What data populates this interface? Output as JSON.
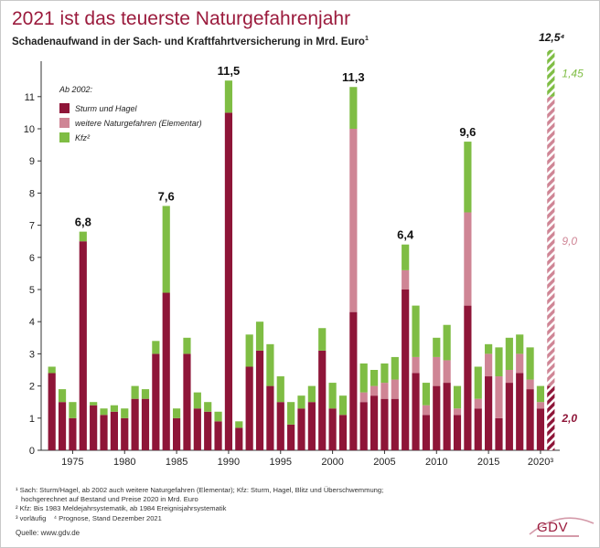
{
  "header": {
    "title": "2021 ist das teuerste Naturgefahrenjahr",
    "subtitle": "Schadenaufwand in der Sach- und Kraftfahrtversicherung in Mrd. Euro",
    "subtitle_sup": "1"
  },
  "colors": {
    "sturm": "#8e1538",
    "elementar": "#cf8595",
    "kfz": "#7fbd44",
    "title": "#9b1b3d"
  },
  "chart_data": {
    "type": "bar",
    "stacked": true,
    "years": [
      1973,
      1974,
      1975,
      1976,
      1977,
      1978,
      1979,
      1980,
      1981,
      1982,
      1983,
      1984,
      1985,
      1986,
      1987,
      1988,
      1989,
      1990,
      1991,
      1992,
      1993,
      1994,
      1995,
      1996,
      1997,
      1998,
      1999,
      2000,
      2001,
      2002,
      2003,
      2004,
      2005,
      2006,
      2007,
      2008,
      2009,
      2010,
      2011,
      2012,
      2013,
      2014,
      2015,
      2016,
      2017,
      2018,
      2019,
      2020,
      2021
    ],
    "series": [
      {
        "name": "Sturm und Hagel",
        "values": [
          2.4,
          1.5,
          1.0,
          6.5,
          1.4,
          1.1,
          1.2,
          1.0,
          1.6,
          1.6,
          3.0,
          4.9,
          1.0,
          3.0,
          1.3,
          1.2,
          0.9,
          10.5,
          0.7,
          2.6,
          3.1,
          2.0,
          1.5,
          0.8,
          1.3,
          1.5,
          3.1,
          1.3,
          1.1,
          4.3,
          1.5,
          1.7,
          1.6,
          1.6,
          5.0,
          2.4,
          1.1,
          2.0,
          2.1,
          1.1,
          4.5,
          1.3,
          2.3,
          1.0,
          2.1,
          2.4,
          1.9,
          1.3,
          2.0
        ]
      },
      {
        "name": "weitere Naturgefahren (Elementar)",
        "values": [
          0,
          0,
          0,
          0,
          0,
          0,
          0,
          0,
          0,
          0,
          0,
          0,
          0,
          0,
          0,
          0,
          0,
          0,
          0,
          0,
          0,
          0,
          0,
          0,
          0,
          0,
          0,
          0,
          0,
          5.7,
          0.3,
          0.3,
          0.5,
          0.6,
          0.6,
          0.5,
          0.3,
          0.9,
          0.7,
          0.2,
          2.9,
          0.3,
          0.7,
          1.3,
          0.4,
          0.6,
          0.3,
          0.2,
          9.0
        ]
      },
      {
        "name": "Kfz²",
        "values": [
          0.2,
          0.4,
          0.5,
          0.3,
          0.1,
          0.2,
          0.2,
          0.3,
          0.4,
          0.3,
          0.4,
          2.7,
          0.3,
          0.5,
          0.5,
          0.3,
          0.3,
          1.0,
          0.2,
          1.0,
          0.9,
          1.3,
          0.8,
          0.7,
          0.4,
          0.5,
          0.7,
          0.8,
          0.6,
          1.3,
          0.9,
          0.5,
          0.6,
          0.7,
          0.8,
          1.6,
          0.7,
          0.6,
          1.1,
          0.7,
          2.2,
          1.0,
          0.3,
          0.9,
          1.0,
          0.6,
          1.0,
          0.5,
          1.45
        ]
      }
    ],
    "forecast_year": 2021,
    "annotations": [
      {
        "year": 1976,
        "label": "6,8"
      },
      {
        "year": 1984,
        "label": "7,6"
      },
      {
        "year": 1990,
        "label": "11,5"
      },
      {
        "year": 2002,
        "label": "11,3"
      },
      {
        "year": 2007,
        "label": "6,4"
      },
      {
        "year": 2013,
        "label": "9,6"
      }
    ],
    "forecast_labels": {
      "total": "12,5⁴",
      "kfz": "1,45",
      "elementar": "9,0",
      "sturm": "2,0"
    },
    "ylim": [
      0,
      12
    ],
    "yticks": [
      "0",
      "1",
      "2",
      "3",
      "4",
      "5",
      "6",
      "7",
      "8",
      "9",
      "10",
      "11"
    ],
    "xticks": [
      {
        "year": 1975,
        "label": "1975"
      },
      {
        "year": 1980,
        "label": "1980"
      },
      {
        "year": 1985,
        "label": "1985"
      },
      {
        "year": 1990,
        "label": "1990"
      },
      {
        "year": 1995,
        "label": "1995"
      },
      {
        "year": 2000,
        "label": "2000"
      },
      {
        "year": 2005,
        "label": "2005"
      },
      {
        "year": 2010,
        "label": "2010"
      },
      {
        "year": 2015,
        "label": "2015"
      },
      {
        "year": 2020,
        "label": "2020³"
      }
    ],
    "legend": {
      "title": "Ab 2002:",
      "placement": "top-left",
      "entries": [
        "Sturm und Hagel",
        "weitere Naturgefahren (Elementar)",
        "Kfz²"
      ]
    },
    "grid": false
  },
  "footnotes": [
    "¹ Sach: Sturm/Hagel, ab 2002 auch weitere Naturgefahren (Elementar); Kfz: Sturm, Hagel, Blitz und Überschwemmung;",
    "  hochgerechnet auf Bestand und Preise 2020 in Mrd. Euro",
    "² Kfz: Bis 1983 Meldejahrsystematik, ab 1984 Ereignisjahrsystematik",
    "³ vorläufig    ⁴ Prognose, Stand Dezember 2021"
  ],
  "source": "Quelle: www.gdv.de",
  "logo": {
    "text": "GDV"
  }
}
